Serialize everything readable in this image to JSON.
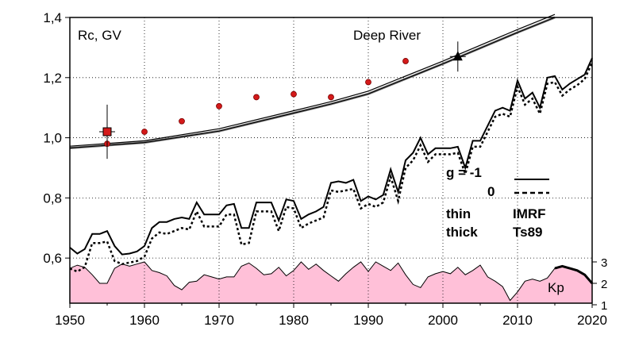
{
  "chart_data": {
    "type": "line",
    "title": "",
    "xlim": [
      1950,
      2020
    ],
    "ylim": [
      0.45,
      1.4
    ],
    "x_ticks": [
      1950,
      1960,
      1970,
      1980,
      1990,
      2000,
      2010,
      2020
    ],
    "x_tick_labels": [
      "1950",
      "1960",
      "1970",
      "1980",
      "1990",
      "2000",
      "2010",
      "2020"
    ],
    "y_ticks": [
      0.6,
      0.8,
      1.0,
      1.2,
      1.4
    ],
    "y_tick_labels": [
      "0,6",
      "0,8",
      "1,0",
      "1,2",
      "1,4"
    ],
    "grid": true,
    "annotations": {
      "panel_label": "Rc, GV",
      "station": "Deep River",
      "legend_g": "g  = -1",
      "legend_zero": "0",
      "legend_thin": "thin",
      "legend_thick": "thick",
      "legend_imrf": "IMRF",
      "legend_ts89": "Ts89",
      "kp_label": "Kp"
    },
    "kp_axis": {
      "range": [
        1,
        3
      ],
      "ticks": [
        1,
        2,
        3
      ],
      "tick_labels": [
        "1",
        "2",
        "3"
      ],
      "fill_color": "#ffc0d8"
    },
    "colors": {
      "observed": "#d41a1a",
      "line": "#000000",
      "grid": "#000000"
    },
    "imrf_series": {
      "x": [
        1950,
        1960,
        1970,
        1980,
        1985,
        1990,
        2000,
        2010,
        2015
      ],
      "thin": [
        0.972,
        0.99,
        1.03,
        1.09,
        1.12,
        1.155,
        1.255,
        1.36,
        1.41
      ],
      "thick": [
        0.966,
        0.984,
        1.022,
        1.082,
        1.112,
        1.146,
        1.246,
        1.35,
        1.4
      ]
    },
    "ts89_series": {
      "x": [
        1950,
        1951,
        1952,
        1953,
        1954,
        1955,
        1956,
        1957,
        1958,
        1959,
        1960,
        1961,
        1962,
        1963,
        1964,
        1965,
        1966,
        1967,
        1968,
        1969,
        1970,
        1971,
        1972,
        1973,
        1974,
        1975,
        1976,
        1977,
        1978,
        1979,
        1980,
        1981,
        1982,
        1983,
        1984,
        1985,
        1986,
        1987,
        1988,
        1989,
        1990,
        1991,
        1992,
        1993,
        1994,
        1995,
        1996,
        1997,
        1998,
        1999,
        2000,
        2001,
        2002,
        2003,
        2004,
        2005,
        2006,
        2007,
        2008,
        2009,
        2010,
        2011,
        2012,
        2013,
        2014,
        2015,
        2016,
        2017,
        2018,
        2019,
        2020
      ],
      "g_minus1": [
        0.635,
        0.615,
        0.63,
        0.68,
        0.68,
        0.69,
        0.64,
        0.612,
        0.615,
        0.622,
        0.64,
        0.7,
        0.72,
        0.72,
        0.73,
        0.735,
        0.73,
        0.785,
        0.745,
        0.745,
        0.745,
        0.775,
        0.78,
        0.7,
        0.7,
        0.785,
        0.785,
        0.785,
        0.725,
        0.795,
        0.79,
        0.73,
        0.745,
        0.755,
        0.77,
        0.85,
        0.855,
        0.85,
        0.86,
        0.79,
        0.805,
        0.795,
        0.81,
        0.895,
        0.82,
        0.925,
        0.95,
        1.0,
        0.945,
        0.965,
        0.965,
        0.965,
        0.97,
        0.9,
        0.99,
        0.99,
        1.04,
        1.09,
        1.1,
        1.09,
        1.19,
        1.13,
        1.15,
        1.1,
        1.2,
        1.205,
        1.16,
        1.18,
        1.195,
        1.21,
        1.265
      ],
      "g_zero": [
        0.565,
        0.555,
        0.57,
        0.65,
        0.65,
        0.655,
        0.59,
        0.58,
        0.585,
        0.59,
        0.605,
        0.665,
        0.685,
        0.68,
        0.69,
        0.7,
        0.695,
        0.755,
        0.705,
        0.705,
        0.705,
        0.745,
        0.745,
        0.645,
        0.65,
        0.755,
        0.755,
        0.755,
        0.69,
        0.77,
        0.765,
        0.7,
        0.715,
        0.725,
        0.735,
        0.825,
        0.82,
        0.825,
        0.83,
        0.765,
        0.78,
        0.77,
        0.785,
        0.87,
        0.79,
        0.9,
        0.925,
        0.975,
        0.92,
        0.945,
        0.945,
        0.945,
        0.95,
        0.88,
        0.97,
        0.97,
        1.02,
        1.07,
        1.08,
        1.07,
        1.17,
        1.11,
        1.13,
        1.08,
        1.18,
        1.185,
        1.14,
        1.16,
        1.175,
        1.195,
        1.25
      ]
    },
    "observed_points": {
      "x": [
        1955,
        1960,
        1965,
        1970,
        1975,
        1980,
        1985,
        1990,
        1995
      ],
      "y": [
        0.98,
        1.02,
        1.055,
        1.105,
        1.135,
        1.145,
        1.135,
        1.185,
        1.255
      ]
    },
    "observed_square": {
      "x": 1955,
      "y": 1.02,
      "err": 0.09
    },
    "deep_river_point": {
      "x": 2002,
      "y": 1.27,
      "err": 0.05
    },
    "kp_series": {
      "x": [
        1950,
        1951,
        1952,
        1953,
        1954,
        1955,
        1956,
        1957,
        1958,
        1959,
        1960,
        1961,
        1962,
        1963,
        1964,
        1965,
        1966,
        1967,
        1968,
        1969,
        1970,
        1971,
        1972,
        1973,
        1974,
        1975,
        1976,
        1977,
        1978,
        1979,
        1980,
        1981,
        1982,
        1983,
        1984,
        1985,
        1986,
        1987,
        1988,
        1989,
        1990,
        1991,
        1992,
        1993,
        1994,
        1995,
        1996,
        1997,
        1998,
        1999,
        2000,
        2001,
        2002,
        2003,
        2004,
        2005,
        2006,
        2007,
        2008,
        2009,
        2010,
        2011,
        2012,
        2013,
        2014,
        2015,
        2016,
        2017,
        2018,
        2019,
        2020
      ],
      "kp": [
        2.7,
        2.85,
        2.75,
        2.4,
        2.0,
        2.0,
        2.7,
        2.9,
        2.8,
        2.9,
        3.0,
        2.6,
        2.5,
        2.35,
        1.9,
        1.7,
        2.05,
        2.1,
        2.4,
        2.3,
        2.2,
        2.3,
        2.3,
        2.8,
        2.95,
        2.7,
        2.4,
        2.45,
        2.75,
        2.35,
        2.6,
        3.0,
        2.65,
        2.9,
        2.6,
        2.35,
        2.1,
        2.45,
        2.75,
        3.0,
        2.55,
        3.0,
        2.8,
        2.6,
        2.95,
        2.4,
        1.95,
        1.8,
        2.3,
        2.45,
        2.55,
        2.45,
        2.75,
        2.4,
        2.6,
        2.85,
        2.3,
        2.1,
        1.85,
        1.2,
        1.6,
        2.1,
        2.2,
        2.1,
        2.25,
        2.7,
        2.8,
        2.7,
        2.6,
        2.4,
        2.0
      ]
    }
  }
}
